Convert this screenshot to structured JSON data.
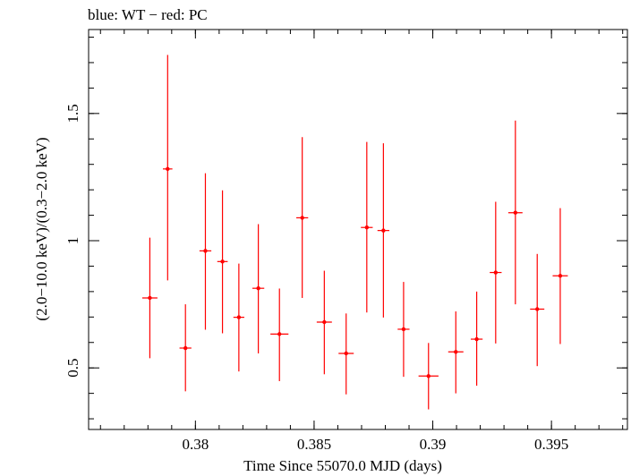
{
  "chart_data": {
    "type": "scatter",
    "title": "blue: WT − red: PC",
    "xlabel": "Time Since 55070.0 MJD (days)",
    "ylabel": "(2.0−10.0 keV)/(0.3−2.0 keV)",
    "xlim": [
      0.3755,
      0.3982
    ],
    "ylim": [
      0.258,
      1.83
    ],
    "xticks": [
      {
        "value": 0.38,
        "label": "0.38"
      },
      {
        "value": 0.385,
        "label": "0.385"
      },
      {
        "value": 0.39,
        "label": "0.39"
      },
      {
        "value": 0.395,
        "label": "0.395"
      }
    ],
    "yticks": [
      {
        "value": 0.5,
        "label": "0.5"
      },
      {
        "value": 1.0,
        "label": "1"
      },
      {
        "value": 1.5,
        "label": "1.5"
      }
    ],
    "grid": false,
    "series": [
      {
        "color": "#ff0000",
        "points": [
          {
            "x": 0.37808,
            "xerr": 0.00032,
            "y": 0.775,
            "ylo": 0.538,
            "yhi": 1.012
          },
          {
            "x": 0.37883,
            "xerr": 0.0002,
            "y": 1.282,
            "ylo": 0.844,
            "yhi": 1.73
          },
          {
            "x": 0.37958,
            "xerr": 0.00025,
            "y": 0.578,
            "ylo": 0.408,
            "yhi": 0.75
          },
          {
            "x": 0.38042,
            "xerr": 0.00025,
            "y": 0.96,
            "ylo": 0.65,
            "yhi": 1.265
          },
          {
            "x": 0.38114,
            "xerr": 0.00022,
            "y": 0.918,
            "ylo": 0.636,
            "yhi": 1.198
          },
          {
            "x": 0.38183,
            "xerr": 0.00023,
            "y": 0.699,
            "ylo": 0.486,
            "yhi": 0.91
          },
          {
            "x": 0.38265,
            "xerr": 0.00025,
            "y": 0.813,
            "ylo": 0.557,
            "yhi": 1.065
          },
          {
            "x": 0.38354,
            "xerr": 0.00038,
            "y": 0.633,
            "ylo": 0.448,
            "yhi": 0.812
          },
          {
            "x": 0.3845,
            "xerr": 0.00025,
            "y": 1.09,
            "ylo": 0.775,
            "yhi": 1.407
          },
          {
            "x": 0.38543,
            "xerr": 0.00032,
            "y": 0.68,
            "ylo": 0.475,
            "yhi": 0.882
          },
          {
            "x": 0.38635,
            "xerr": 0.00032,
            "y": 0.557,
            "ylo": 0.396,
            "yhi": 0.714
          },
          {
            "x": 0.38722,
            "xerr": 0.00025,
            "y": 1.052,
            "ylo": 0.718,
            "yhi": 1.388
          },
          {
            "x": 0.38792,
            "xerr": 0.00025,
            "y": 1.04,
            "ylo": 0.698,
            "yhi": 1.383
          },
          {
            "x": 0.38877,
            "xerr": 0.00025,
            "y": 0.652,
            "ylo": 0.465,
            "yhi": 0.838
          },
          {
            "x": 0.38982,
            "xerr": 0.00042,
            "y": 0.468,
            "ylo": 0.337,
            "yhi": 0.598
          },
          {
            "x": 0.39097,
            "xerr": 0.00032,
            "y": 0.563,
            "ylo": 0.4,
            "yhi": 0.722
          },
          {
            "x": 0.39185,
            "xerr": 0.00025,
            "y": 0.613,
            "ylo": 0.43,
            "yhi": 0.8
          },
          {
            "x": 0.39265,
            "xerr": 0.00025,
            "y": 0.875,
            "ylo": 0.596,
            "yhi": 1.153
          },
          {
            "x": 0.39348,
            "xerr": 0.0003,
            "y": 1.11,
            "ylo": 0.75,
            "yhi": 1.472
          },
          {
            "x": 0.3944,
            "xerr": 0.0003,
            "y": 0.731,
            "ylo": 0.507,
            "yhi": 0.948
          },
          {
            "x": 0.39537,
            "xerr": 0.00032,
            "y": 0.862,
            "ylo": 0.594,
            "yhi": 1.128
          }
        ]
      }
    ]
  }
}
